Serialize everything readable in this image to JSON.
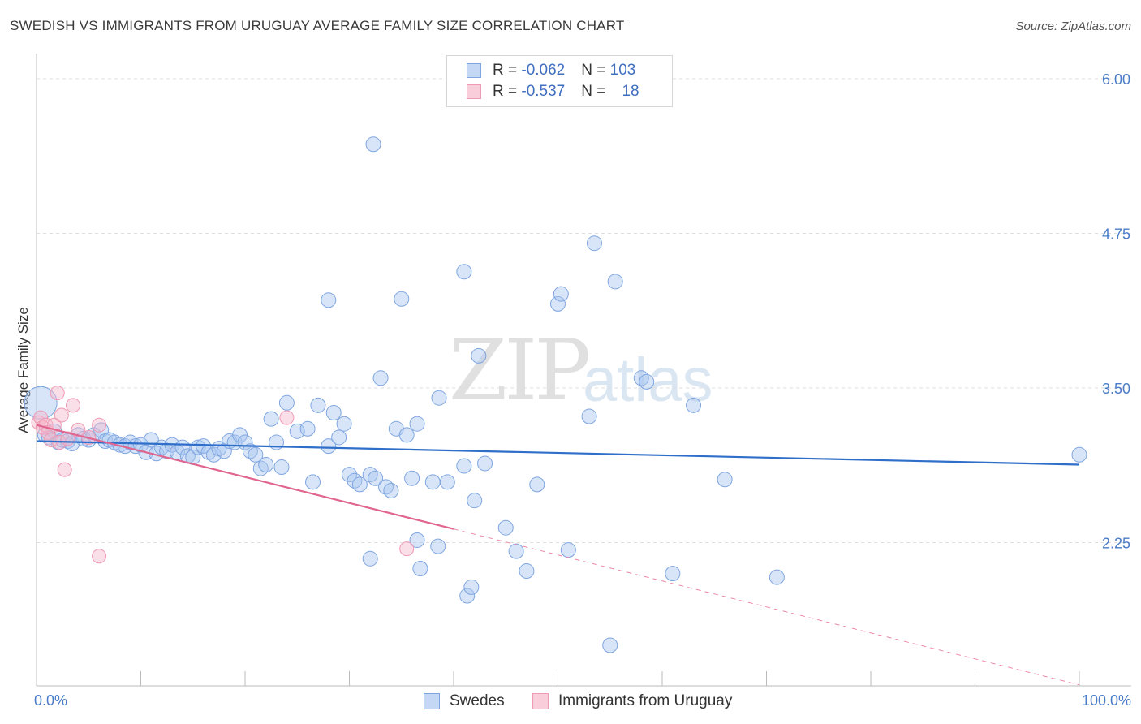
{
  "title": "SWEDISH VS IMMIGRANTS FROM URUGUAY AVERAGE FAMILY SIZE CORRELATION CHART",
  "source": "Source: ZipAtlas.com",
  "watermark": {
    "zip": "ZIP",
    "atlas": "atlas"
  },
  "legend_top": [
    {
      "r_label": "R = ",
      "r_value": "-0.062",
      "n_label": "N = ",
      "n_value": "103",
      "color": "#a9c6ef"
    },
    {
      "r_label": "R = ",
      "r_value": "-0.537",
      "n_label": "N = ",
      "n_value": "18",
      "color": "#f6b8cb"
    }
  ],
  "legend_bottom": [
    {
      "label": "Swedes",
      "color": "#a9c6ef"
    },
    {
      "label": "Immigrants from Uruguay",
      "color": "#f6b8cb"
    }
  ],
  "chart_data": {
    "type": "scatter",
    "title": "SWEDISH VS IMMIGRANTS FROM URUGUAY AVERAGE FAMILY SIZE CORRELATION CHART",
    "xlabel": "",
    "ylabel": "Average Family Size",
    "xlim": [
      0,
      100
    ],
    "ylim": [
      1.25,
      6.1
    ],
    "x_tick_labels": [
      "0.0%",
      "100.0%"
    ],
    "y_ticks": [
      2.25,
      3.5,
      4.75,
      6.0
    ],
    "y_tick_labels": [
      "2.25",
      "3.50",
      "4.75",
      "6.00"
    ],
    "grid": true,
    "series": [
      {
        "name": "Swedes",
        "color": "#6f9fe0",
        "trend": {
          "x": [
            0,
            100
          ],
          "y": [
            3.07,
            2.88
          ]
        },
        "points": [
          [
            0.4,
            3.38
          ],
          [
            0.8,
            3.12
          ],
          [
            1.2,
            3.1
          ],
          [
            1.7,
            3.15
          ],
          [
            2.1,
            3.06
          ],
          [
            2.5,
            3.08
          ],
          [
            3.0,
            3.07
          ],
          [
            3.4,
            3.05
          ],
          [
            4.0,
            3.12
          ],
          [
            4.5,
            3.09
          ],
          [
            5.0,
            3.08
          ],
          [
            5.5,
            3.12
          ],
          [
            6.2,
            3.16
          ],
          [
            6.6,
            3.07
          ],
          [
            7.0,
            3.08
          ],
          [
            7.5,
            3.06
          ],
          [
            8.0,
            3.04
          ],
          [
            8.5,
            3.03
          ],
          [
            9.0,
            3.06
          ],
          [
            9.5,
            3.03
          ],
          [
            10.0,
            3.04
          ],
          [
            10.5,
            2.98
          ],
          [
            11.0,
            3.08
          ],
          [
            11.5,
            2.97
          ],
          [
            12.0,
            3.02
          ],
          [
            12.5,
            2.99
          ],
          [
            13.0,
            3.04
          ],
          [
            13.5,
            2.98
          ],
          [
            14.0,
            3.02
          ],
          [
            14.5,
            2.95
          ],
          [
            15.0,
            2.94
          ],
          [
            15.5,
            3.02
          ],
          [
            16.0,
            3.03
          ],
          [
            16.5,
            2.98
          ],
          [
            17.0,
            2.96
          ],
          [
            17.5,
            3.01
          ],
          [
            18.0,
            2.99
          ],
          [
            18.5,
            3.07
          ],
          [
            19.0,
            3.06
          ],
          [
            19.5,
            3.12
          ],
          [
            20.0,
            3.06
          ],
          [
            20.5,
            2.99
          ],
          [
            21.0,
            2.96
          ],
          [
            21.5,
            2.85
          ],
          [
            22.0,
            2.88
          ],
          [
            22.5,
            3.25
          ],
          [
            23.0,
            3.06
          ],
          [
            23.5,
            2.86
          ],
          [
            24.0,
            3.38
          ],
          [
            25.0,
            3.15
          ],
          [
            26.0,
            3.17
          ],
          [
            26.5,
            2.74
          ],
          [
            27.0,
            3.36
          ],
          [
            28.0,
            3.03
          ],
          [
            28.0,
            4.21
          ],
          [
            28.5,
            3.3
          ],
          [
            29.0,
            3.1
          ],
          [
            29.5,
            3.21
          ],
          [
            30.0,
            2.8
          ],
          [
            30.5,
            2.75
          ],
          [
            31.0,
            2.72
          ],
          [
            32.0,
            2.8
          ],
          [
            32.5,
            2.77
          ],
          [
            33.0,
            3.58
          ],
          [
            32.0,
            2.12
          ],
          [
            33.5,
            2.7
          ],
          [
            32.3,
            5.47
          ],
          [
            34.0,
            2.67
          ],
          [
            34.5,
            3.17
          ],
          [
            35.0,
            4.22
          ],
          [
            35.5,
            3.12
          ],
          [
            36.0,
            2.77
          ],
          [
            36.5,
            3.21
          ],
          [
            36.5,
            2.27
          ],
          [
            36.8,
            2.04
          ],
          [
            38.0,
            2.74
          ],
          [
            38.5,
            2.22
          ],
          [
            38.6,
            3.42
          ],
          [
            39.4,
            2.74
          ],
          [
            41.0,
            4.44
          ],
          [
            41.0,
            2.87
          ],
          [
            41.3,
            1.82
          ],
          [
            41.7,
            1.89
          ],
          [
            42.0,
            2.59
          ],
          [
            42.4,
            3.76
          ],
          [
            43.0,
            2.89
          ],
          [
            45.0,
            2.37
          ],
          [
            46.0,
            2.18
          ],
          [
            47.0,
            2.02
          ],
          [
            48.0,
            2.72
          ],
          [
            50.0,
            4.18
          ],
          [
            50.3,
            4.26
          ],
          [
            51.0,
            2.19
          ],
          [
            53.5,
            4.67
          ],
          [
            53.0,
            3.27
          ],
          [
            55.0,
            1.42
          ],
          [
            55.5,
            4.36
          ],
          [
            58.0,
            3.58
          ],
          [
            58.5,
            3.55
          ],
          [
            61.0,
            2.0
          ],
          [
            63.0,
            3.36
          ],
          [
            66.0,
            2.76
          ],
          [
            71.0,
            1.97
          ],
          [
            100.0,
            2.96
          ]
        ]
      },
      {
        "name": "Immigrants from Uruguay",
        "color": "#ee90ae",
        "trend": {
          "x": [
            0,
            40
          ],
          "y": [
            3.2,
            2.36
          ]
        },
        "trend_extension": {
          "x": [
            40,
            100
          ],
          "y": [
            2.36,
            1.1
          ]
        },
        "points": [
          [
            0.2,
            3.22
          ],
          [
            0.4,
            3.26
          ],
          [
            0.6,
            3.18
          ],
          [
            0.9,
            3.2
          ],
          [
            1.1,
            3.14
          ],
          [
            1.4,
            3.08
          ],
          [
            1.7,
            3.2
          ],
          [
            2.0,
            3.46
          ],
          [
            2.2,
            3.06
          ],
          [
            2.4,
            3.28
          ],
          [
            2.7,
            2.84
          ],
          [
            3.0,
            3.09
          ],
          [
            3.5,
            3.36
          ],
          [
            4.0,
            3.16
          ],
          [
            5.0,
            3.1
          ],
          [
            6.0,
            3.2
          ],
          [
            6.0,
            2.14
          ],
          [
            24.0,
            3.26
          ],
          [
            35.5,
            2.2
          ]
        ]
      }
    ]
  }
}
